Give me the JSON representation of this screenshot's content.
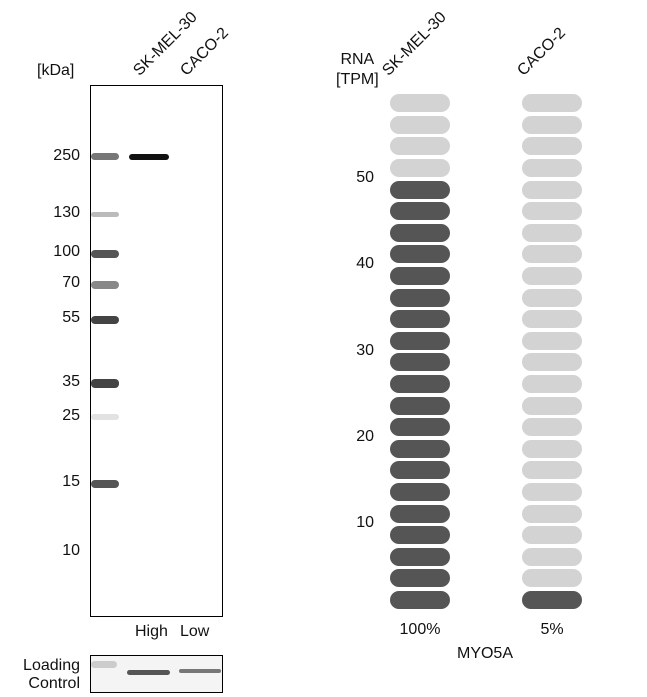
{
  "western_blot": {
    "unit_label": "[kDa]",
    "lanes": [
      "SK-MEL-30",
      "CACO-2"
    ],
    "markers": [
      "250",
      "130",
      "100",
      "70",
      "55",
      "35",
      "25",
      "15",
      "10"
    ],
    "expression_labels": [
      "High",
      "Low"
    ],
    "loading_control_label": [
      "Loading",
      "Control"
    ]
  },
  "chart_data": {
    "type": "bar",
    "ylabel": [
      "RNA",
      "[TPM]"
    ],
    "y_ticks": [
      "10",
      "20",
      "30",
      "40",
      "50"
    ],
    "ylim": [
      0,
      60
    ],
    "segment_tpm": 2.5,
    "categories": [
      "SK-MEL-30",
      "CACO-2"
    ],
    "values": [
      50,
      2.5
    ],
    "percent_labels": [
      "100%",
      "5%"
    ],
    "gene": "MYO5A",
    "colors": {
      "filled": "#555555",
      "empty": "#d3d3d3"
    }
  }
}
